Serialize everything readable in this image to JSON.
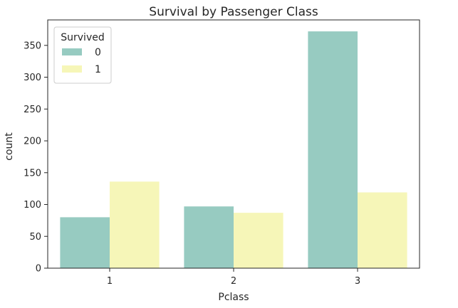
{
  "chart_data": {
    "type": "bar",
    "title": "Survival by Passenger Class",
    "xlabel": "Pclass",
    "ylabel": "count",
    "categories": [
      "1",
      "2",
      "3"
    ],
    "series": [
      {
        "name": "0",
        "values": [
          80,
          97,
          372
        ],
        "color": "#97cbc1"
      },
      {
        "name": "1",
        "values": [
          136,
          87,
          119
        ],
        "color": "#f6f6b8"
      }
    ],
    "ylim": [
      0,
      390
    ],
    "yticks": [
      0,
      50,
      100,
      150,
      200,
      250,
      300,
      350
    ],
    "legend": {
      "title": "Survived",
      "placement": "top-left"
    },
    "grid": false
  }
}
